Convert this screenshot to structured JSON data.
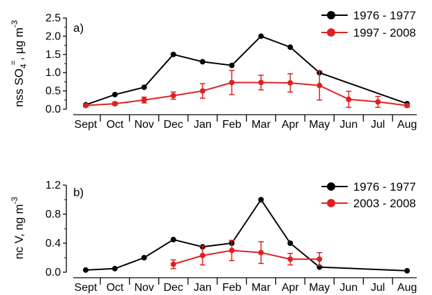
{
  "chart_data": [
    {
      "type": "line",
      "panel_label": "a)",
      "ylabel": "nss SO4=, µg m-3",
      "ylabel_parts": {
        "main": "nss SO",
        "sub": "4",
        "sup": "=",
        "unit": ", µg m",
        "unit_sup": "-3"
      },
      "categories": [
        "Sept",
        "Oct",
        "Nov",
        "Dec",
        "Jan",
        "Feb",
        "Mar",
        "Apr",
        "May",
        "Jun",
        "Jul",
        "Aug"
      ],
      "ylim": [
        0,
        2.5
      ],
      "yticks": [
        "0.0",
        "0.5",
        "1.0",
        "1.5",
        "2.0",
        "2.5"
      ],
      "legend_position": "top-right",
      "series": [
        {
          "name": "1976 - 1977",
          "color": "#000000",
          "values": [
            0.12,
            0.4,
            0.6,
            1.5,
            1.3,
            1.2,
            2.0,
            1.7,
            1.0,
            null,
            null,
            0.15
          ],
          "errors": null
        },
        {
          "name": "1997 - 2008",
          "color": "#e02020",
          "values": [
            0.1,
            0.15,
            0.25,
            0.37,
            0.5,
            0.73,
            0.73,
            0.72,
            0.65,
            0.27,
            0.2,
            0.1
          ],
          "errors": [
            0.03,
            0.04,
            0.08,
            0.1,
            0.2,
            0.33,
            0.2,
            0.25,
            0.4,
            0.22,
            0.15,
            0.04
          ]
        }
      ]
    },
    {
      "type": "line",
      "panel_label": "b)",
      "ylabel": "nc V, ng m-3",
      "ylabel_parts": {
        "main": "nc V, ng m",
        "sub": "",
        "sup": "",
        "unit": "",
        "unit_sup": "-3"
      },
      "categories": [
        "Sept",
        "Oct",
        "Nov",
        "Dec",
        "Jan",
        "Feb",
        "Mar",
        "Apr",
        "May",
        "Jun",
        "Jul",
        "Aug"
      ],
      "ylim": [
        0,
        1.2
      ],
      "yticks": [
        "0.0",
        "0.4",
        "0.8",
        "1.2"
      ],
      "legend_position": "top-right",
      "series": [
        {
          "name": "1976 - 1977",
          "color": "#000000",
          "values": [
            0.03,
            0.05,
            0.2,
            0.45,
            0.35,
            0.4,
            1.0,
            0.4,
            0.07,
            null,
            null,
            0.02
          ],
          "errors": null
        },
        {
          "name": "2003 - 2008",
          "color": "#e02020",
          "values": [
            null,
            null,
            null,
            0.11,
            0.23,
            0.3,
            0.27,
            0.18,
            0.18,
            null,
            null,
            null
          ],
          "errors": [
            null,
            null,
            null,
            0.06,
            0.13,
            0.14,
            0.15,
            0.08,
            0.09,
            null,
            null,
            null
          ]
        }
      ]
    }
  ]
}
